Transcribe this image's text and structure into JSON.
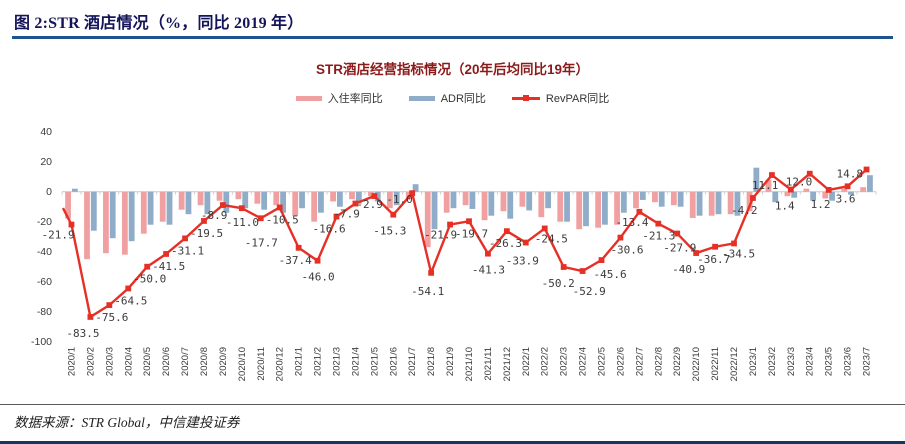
{
  "header": {
    "title": "图 2:STR 酒店情况（%，同比 2019 年）"
  },
  "footer": {
    "source": "数据来源：STR Global，中信建投证券"
  },
  "colors": {
    "occupancy_bar": "#f1a0a2",
    "adr_bar": "#8facc8",
    "revpar_line": "#e63026",
    "header_rule": "#1f5390",
    "chart_title": "#8b1a1a",
    "axis_text": "#3b3b3b",
    "zero_axis": "#c9c9c9"
  },
  "chart_data": {
    "type": "bar+line",
    "title": "STR酒店经营指标情况（20年后均同比19年）",
    "legend_position": "top",
    "grid": false,
    "ylim": [
      -100,
      40
    ],
    "yticks": [
      40,
      20,
      0,
      -20,
      -40,
      -60,
      -80,
      -100
    ],
    "categories": [
      "2020/1",
      "2020/2",
      "2020/3",
      "2020/4",
      "2020/5",
      "2020/6",
      "2020/7",
      "2020/8",
      "2020/9",
      "2020/10",
      "2020/11",
      "2020/12",
      "2021/1",
      "2021/2",
      "2021/3",
      "2021/4",
      "2021/5",
      "2021/6",
      "2021/7",
      "2021/8",
      "2021/9",
      "2021/10",
      "2021/11",
      "2021/12",
      "2022/1",
      "2022/2",
      "2022/3",
      "2022/4",
      "2022/5",
      "2022/6",
      "2022/7",
      "2022/8",
      "2022/9",
      "2022/10",
      "2022/11",
      "2022/12",
      "2023/1",
      "2023/2",
      "2023/3",
      "2023/4",
      "2023/5",
      "2023/6",
      "2023/7"
    ],
    "series": [
      {
        "name": "入住率同比",
        "type": "bar",
        "color": "#f1a0a2",
        "values": [
          -18,
          -45,
          -41,
          -42,
          -28,
          -20,
          -12,
          -9,
          -6,
          -5,
          -8,
          -9,
          -16,
          -20,
          -6.5,
          -5,
          -3,
          -11,
          -5,
          -37,
          -14,
          -9,
          -19,
          -13,
          -10,
          -17,
          -20,
          -25,
          -24,
          -22,
          -11,
          -7,
          -9,
          -17.5,
          -16,
          -15,
          -13,
          8,
          -3,
          2,
          -4.5,
          2,
          3
        ]
      },
      {
        "name": "ADR同比",
        "type": "bar",
        "color": "#8facc8",
        "values": [
          2,
          -26,
          -31,
          -33,
          -22,
          -22,
          -15,
          -15,
          -14,
          -11,
          -12,
          -14,
          -11,
          -14,
          -10,
          -8,
          -6.5,
          -9,
          5,
          -25,
          -11,
          -11.5,
          -16,
          -18,
          -12.5,
          -11,
          -20,
          -23,
          -22,
          -14,
          -5.5,
          -10,
          -10,
          -16,
          -15,
          -16,
          16,
          -7,
          -4,
          -6,
          -6,
          -2,
          11
        ]
      },
      {
        "name": "RevPAR同比",
        "type": "line",
        "color": "#e63026",
        "values": [
          -21.9,
          -83.5,
          -75.6,
          -64.5,
          -50.0,
          -41.5,
          -31.1,
          -19.5,
          -8.9,
          -11.0,
          -17.7,
          -10.5,
          -37.4,
          -46.0,
          -16.6,
          -7.9,
          -2.9,
          -15.3,
          -1.0,
          -54.1,
          -21.9,
          -19.7,
          -41.3,
          -26.3,
          -33.9,
          -24.5,
          -50.2,
          -52.9,
          -45.6,
          -30.6,
          -13.4,
          -21.3,
          -27.9,
          -40.9,
          -36.7,
          -34.5,
          -4.2,
          11.1,
          1.4,
          12.0,
          1.2,
          3.6,
          14.8
        ],
        "labels": [
          "-21.9",
          "-83.5",
          "-75.6",
          "-64.5",
          "-50.0",
          "-41.5",
          "-31.1",
          "-19.5",
          "-8.9",
          "-11.0",
          "-17.7",
          "-10.5",
          "-37.4",
          "-46.0",
          "-16.6",
          "-7.9",
          "-2.9",
          "-15.3",
          "-1.0",
          "-54.1",
          "-21.9",
          "-19.7",
          "-41.3",
          "-26.3",
          "-33.9",
          "-24.5",
          "-50.2",
          "-52.9",
          "-45.6",
          "-30.6",
          "-13.4",
          "-21.3",
          "-27.9",
          "-40.9",
          "-36.7",
          "-34.5",
          "-4.2",
          "11.1",
          "1.4",
          "12.0",
          "1.2",
          "3.6",
          "14.8"
        ]
      }
    ]
  }
}
